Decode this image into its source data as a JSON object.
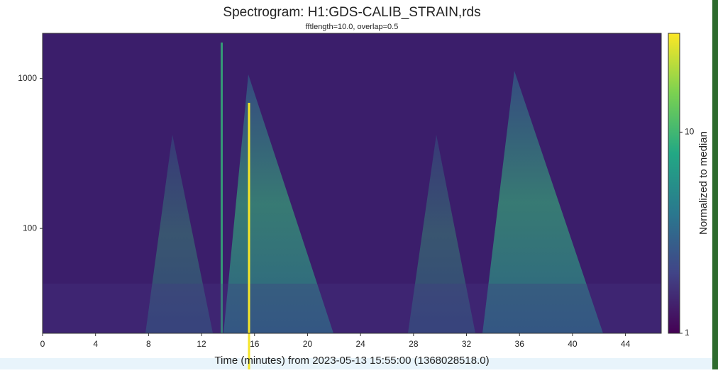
{
  "chart_data": {
    "type": "spectrogram",
    "title": "Spectrogram: H1:GDS-CALIB_STRAIN,rds",
    "subtitle": "fftlength=10.0, overlap=0.5",
    "xlabel": "Time (minutes) from 2023-05-13 15:55:00 (1368028518.0)",
    "xlim": [
      0,
      46.7
    ],
    "xticks": [
      0,
      4,
      8,
      12,
      16,
      20,
      24,
      28,
      32,
      36,
      40,
      44
    ],
    "ylim": [
      20,
      2000
    ],
    "yticks": [
      100,
      1000
    ],
    "ylog": true,
    "colorbar_label": "Normalized to median",
    "clim": [
      1,
      31
    ],
    "cticks": [
      1,
      10
    ],
    "clog": true,
    "colormap": "viridis"
  }
}
